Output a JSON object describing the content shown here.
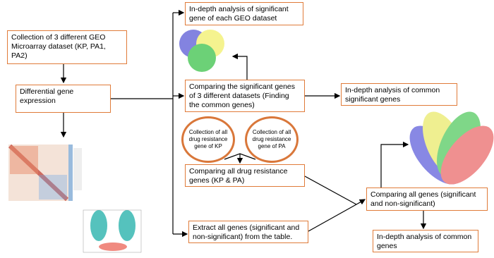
{
  "nodes": [
    {
      "label": "Collection of 3 different GEO Microarray dataset (KP, PA1, PA2)"
    },
    {
      "label": "Differential gene expression"
    },
    {
      "label": "In-depth analysis of significant gene of each GEO dataset"
    },
    {
      "label": "Comparing the significant genes of 3 different datasets (Finding the common genes)"
    },
    {
      "label": "In-depth analysis of  common significant genes"
    },
    {
      "label": "Collection of all drug resistance gene of KP"
    },
    {
      "label": "Collection of all drug resistance gene of PA"
    },
    {
      "label": "Comparing all drug resistance genes (KP & PA)"
    },
    {
      "label": "Extract all genes (significant and non-significant) from the table."
    },
    {
      "label": "Comparing all genes (significant and non-significant)"
    },
    {
      "label": "In-depth analysis of  common genes"
    }
  ]
}
